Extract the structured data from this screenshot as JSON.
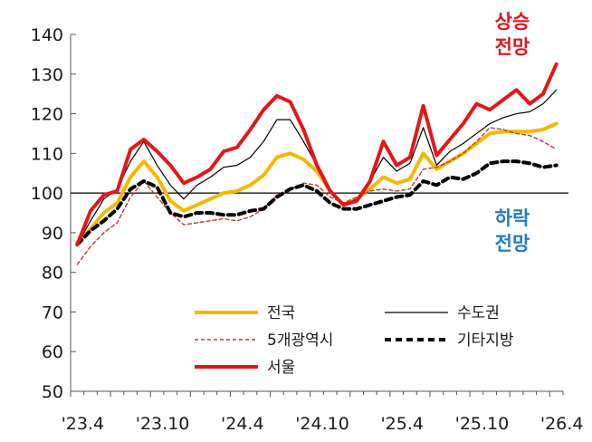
{
  "chart_data": {
    "type": "line",
    "title": "",
    "xlabel": "",
    "ylabel": "",
    "ylim": [
      50,
      140
    ],
    "yticks": [
      50,
      60,
      70,
      80,
      90,
      100,
      110,
      120,
      130,
      140
    ],
    "baseline": 100,
    "x_tick_labels": [
      "'23.4",
      "'23.10",
      "'24.4",
      "'24.10",
      "'25.4",
      "'25.10",
      "'26.4"
    ],
    "x_tick_month_index": [
      0,
      6,
      12,
      18,
      24,
      30,
      36
    ],
    "x_months": [
      "2023-04",
      "2023-05",
      "2023-06",
      "2023-07",
      "2023-08",
      "2023-09",
      "2023-10",
      "2023-11",
      "2023-12",
      "2024-01",
      "2024-02",
      "2024-03",
      "2024-04",
      "2024-05",
      "2024-06",
      "2024-07",
      "2024-08",
      "2024-09",
      "2024-10",
      "2024-11",
      "2024-12",
      "2025-01",
      "2025-02",
      "2025-03",
      "2025-04",
      "2025-05",
      "2025-06",
      "2025-07",
      "2025-08",
      "2025-09",
      "2025-10",
      "2025-11",
      "2025-12",
      "2026-01",
      "2026-02",
      "2026-03",
      "2026-04"
    ],
    "grid": false,
    "legend_position": "bottom-center",
    "series": [
      {
        "name": "전국",
        "color": "#f5b800",
        "style": "solid-thick",
        "values": [
          87.5,
          91.0,
          95.0,
          97.5,
          104.0,
          108.0,
          104.0,
          98.0,
          95.5,
          97.0,
          98.5,
          100.0,
          100.5,
          102.0,
          104.5,
          109.0,
          110.0,
          108.5,
          105.5,
          100.5,
          97.0,
          98.5,
          101.0,
          104.0,
          102.5,
          103.5,
          110.0,
          106.0,
          108.0,
          110.0,
          112.5,
          115.0,
          115.5,
          115.5,
          115.5,
          116.0,
          117.5
        ]
      },
      {
        "name": "수도권",
        "color": "#000000",
        "style": "solid-thin",
        "values": [
          87.0,
          93.0,
          98.5,
          101.0,
          108.0,
          113.0,
          107.0,
          102.0,
          98.5,
          102.0,
          104.0,
          106.5,
          107.0,
          109.0,
          113.0,
          118.5,
          118.5,
          113.0,
          107.0,
          101.0,
          97.0,
          98.5,
          103.0,
          109.0,
          105.5,
          107.5,
          116.5,
          107.0,
          110.5,
          112.5,
          115.0,
          117.5,
          119.0,
          120.0,
          120.5,
          122.5,
          126.0
        ]
      },
      {
        "name": "5개광역시",
        "color": "#c0392b",
        "style": "dashed-thin",
        "values": [
          82.0,
          86.5,
          90.0,
          92.5,
          99.0,
          103.0,
          99.0,
          95.0,
          92.0,
          92.5,
          93.0,
          93.5,
          93.0,
          94.0,
          96.0,
          99.5,
          101.0,
          102.5,
          102.0,
          99.0,
          97.5,
          99.0,
          100.5,
          101.0,
          100.5,
          101.0,
          106.0,
          106.5,
          108.0,
          110.0,
          113.0,
          116.5,
          116.0,
          115.0,
          114.5,
          113.0,
          111.0
        ]
      },
      {
        "name": "기타지방",
        "color": "#000000",
        "style": "dashed-thick",
        "values": [
          87.0,
          90.5,
          93.0,
          96.0,
          101.0,
          103.0,
          101.5,
          95.0,
          94.0,
          95.0,
          95.0,
          94.5,
          94.5,
          95.5,
          96.0,
          99.0,
          101.0,
          102.0,
          100.5,
          97.5,
          96.0,
          96.0,
          97.0,
          98.0,
          99.0,
          99.5,
          103.0,
          102.0,
          104.0,
          103.5,
          105.0,
          107.5,
          108.0,
          108.0,
          107.5,
          106.5,
          107.0
        ]
      },
      {
        "name": "서울",
        "color": "#e3161b",
        "style": "solid-thick",
        "values": [
          87.0,
          95.5,
          99.5,
          100.5,
          111.0,
          113.5,
          110.5,
          107.0,
          102.5,
          104.0,
          106.0,
          110.5,
          111.5,
          116.0,
          121.0,
          124.5,
          123.0,
          116.0,
          107.0,
          100.5,
          97.0,
          98.0,
          103.0,
          113.0,
          107.0,
          109.0,
          122.0,
          109.5,
          113.5,
          117.5,
          122.5,
          121.0,
          123.5,
          126.0,
          122.5,
          125.0,
          132.5
        ]
      }
    ],
    "annotations": [
      {
        "lines": [
          "상승",
          "전망"
        ],
        "color": "#e3161b",
        "position": "top-right"
      },
      {
        "lines": [
          "하락",
          "전망"
        ],
        "color": "#1f7bbf",
        "position": "below-baseline-right"
      }
    ]
  }
}
